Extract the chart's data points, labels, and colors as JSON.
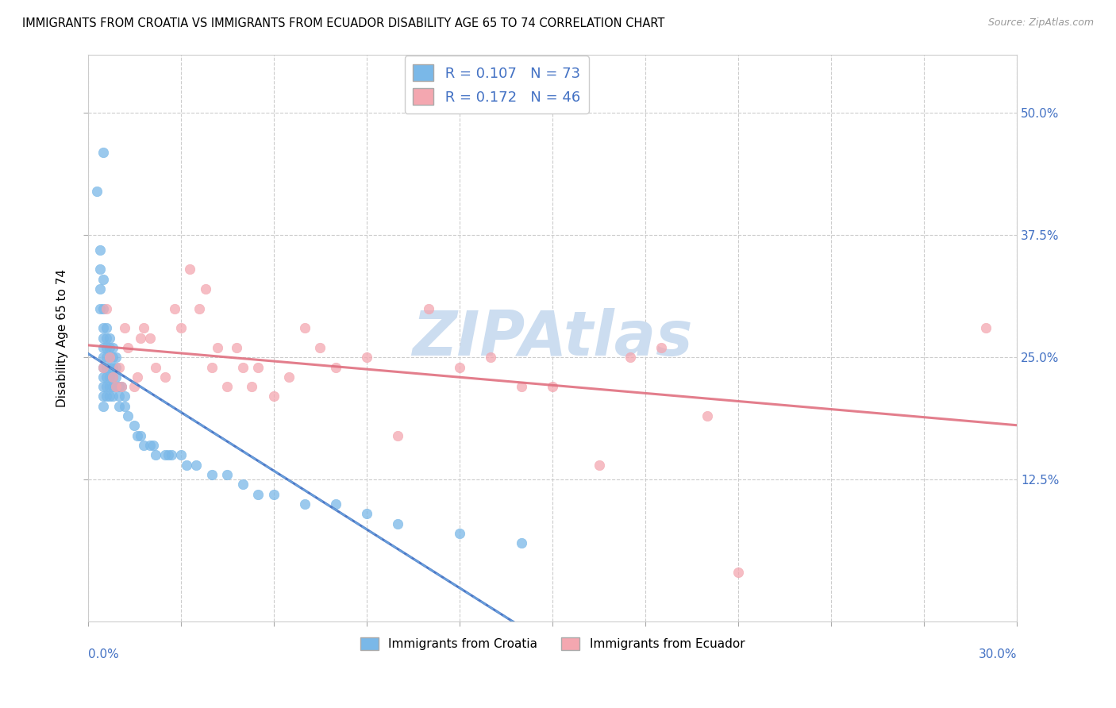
{
  "title": "IMMIGRANTS FROM CROATIA VS IMMIGRANTS FROM ECUADOR DISABILITY AGE 65 TO 74 CORRELATION CHART",
  "source": "Source: ZipAtlas.com",
  "ylabel": "Disability Age 65 to 74",
  "ytick_labels": [
    "12.5%",
    "25.0%",
    "37.5%",
    "50.0%"
  ],
  "ytick_values": [
    0.125,
    0.25,
    0.375,
    0.5
  ],
  "xlim": [
    0.0,
    0.3
  ],
  "ylim": [
    -0.02,
    0.56
  ],
  "legend_r1": "R = 0.107",
  "legend_n1": "N = 73",
  "legend_r2": "R = 0.172",
  "legend_n2": "N = 46",
  "color_croatia": "#7ab8e8",
  "color_ecuador": "#f4a7b0",
  "label_croatia": "Immigrants from Croatia",
  "label_ecuador": "Immigrants from Ecuador",
  "watermark": "ZIPAtlas",
  "watermark_color": "#ccddf0",
  "scatter_croatia_x": [
    0.003,
    0.004,
    0.004,
    0.004,
    0.004,
    0.005,
    0.005,
    0.005,
    0.005,
    0.005,
    0.005,
    0.005,
    0.005,
    0.005,
    0.005,
    0.005,
    0.005,
    0.006,
    0.006,
    0.006,
    0.006,
    0.006,
    0.006,
    0.006,
    0.006,
    0.007,
    0.007,
    0.007,
    0.007,
    0.007,
    0.007,
    0.007,
    0.008,
    0.008,
    0.008,
    0.008,
    0.008,
    0.008,
    0.009,
    0.009,
    0.009,
    0.009,
    0.01,
    0.01,
    0.01,
    0.011,
    0.012,
    0.012,
    0.013,
    0.015,
    0.016,
    0.017,
    0.018,
    0.02,
    0.021,
    0.022,
    0.025,
    0.026,
    0.027,
    0.03,
    0.032,
    0.035,
    0.04,
    0.045,
    0.05,
    0.055,
    0.06,
    0.07,
    0.08,
    0.09,
    0.1,
    0.12,
    0.14
  ],
  "scatter_croatia_y": [
    0.42,
    0.36,
    0.34,
    0.32,
    0.3,
    0.46,
    0.33,
    0.3,
    0.28,
    0.27,
    0.26,
    0.25,
    0.24,
    0.23,
    0.22,
    0.21,
    0.2,
    0.28,
    0.27,
    0.26,
    0.25,
    0.24,
    0.23,
    0.22,
    0.21,
    0.27,
    0.26,
    0.25,
    0.24,
    0.23,
    0.22,
    0.21,
    0.26,
    0.25,
    0.24,
    0.23,
    0.22,
    0.21,
    0.25,
    0.24,
    0.23,
    0.22,
    0.22,
    0.21,
    0.2,
    0.22,
    0.21,
    0.2,
    0.19,
    0.18,
    0.17,
    0.17,
    0.16,
    0.16,
    0.16,
    0.15,
    0.15,
    0.15,
    0.15,
    0.15,
    0.14,
    0.14,
    0.13,
    0.13,
    0.12,
    0.11,
    0.11,
    0.1,
    0.1,
    0.09,
    0.08,
    0.07,
    0.06
  ],
  "scatter_ecuador_x": [
    0.005,
    0.006,
    0.007,
    0.008,
    0.009,
    0.01,
    0.011,
    0.012,
    0.013,
    0.015,
    0.016,
    0.017,
    0.018,
    0.02,
    0.022,
    0.025,
    0.028,
    0.03,
    0.033,
    0.036,
    0.038,
    0.04,
    0.042,
    0.045,
    0.048,
    0.05,
    0.053,
    0.055,
    0.06,
    0.065,
    0.07,
    0.075,
    0.08,
    0.09,
    0.1,
    0.11,
    0.12,
    0.13,
    0.14,
    0.15,
    0.165,
    0.175,
    0.185,
    0.2,
    0.21,
    0.29
  ],
  "scatter_ecuador_y": [
    0.24,
    0.3,
    0.25,
    0.23,
    0.22,
    0.24,
    0.22,
    0.28,
    0.26,
    0.22,
    0.23,
    0.27,
    0.28,
    0.27,
    0.24,
    0.23,
    0.3,
    0.28,
    0.34,
    0.3,
    0.32,
    0.24,
    0.26,
    0.22,
    0.26,
    0.24,
    0.22,
    0.24,
    0.21,
    0.23,
    0.28,
    0.26,
    0.24,
    0.25,
    0.17,
    0.3,
    0.24,
    0.25,
    0.22,
    0.22,
    0.14,
    0.25,
    0.26,
    0.19,
    0.03,
    0.28
  ],
  "trend_croatia_color": "#4472c4",
  "trend_ecuador_color": "#e07080"
}
